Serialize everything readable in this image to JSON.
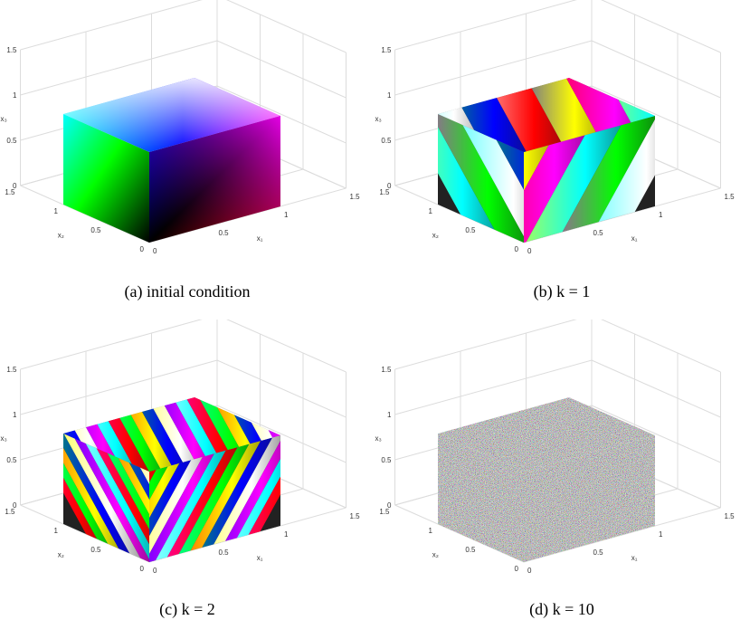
{
  "panels": [
    {
      "id": "a",
      "caption": "(a) initial condition",
      "style": "gradient"
    },
    {
      "id": "b",
      "caption": "(b) k = 1",
      "style": "stripes1"
    },
    {
      "id": "c",
      "caption": "(c) k = 2",
      "style": "stripes2"
    },
    {
      "id": "d",
      "caption": "(d) k = 10",
      "style": "noise"
    }
  ],
  "axes": {
    "x3_ticks": [
      "0",
      "0.5",
      "1",
      "1.5"
    ],
    "x2_ticks": [
      "0",
      "0.5",
      "1",
      "1.5"
    ],
    "x1_ticks": [
      "0",
      "0.5",
      "1",
      "1.5"
    ],
    "x1_label": "x₁",
    "x2_label": "x₂",
    "x3_label": "x₃"
  },
  "colors": {
    "grid": "#dcdcdc",
    "red": "#ff0000",
    "green": "#00ff00",
    "blue": "#0000ff",
    "black": "#000000",
    "cyan": "#00ffff",
    "magenta": "#ff00ff",
    "yellow": "#ffff00",
    "white": "#ffffff"
  }
}
